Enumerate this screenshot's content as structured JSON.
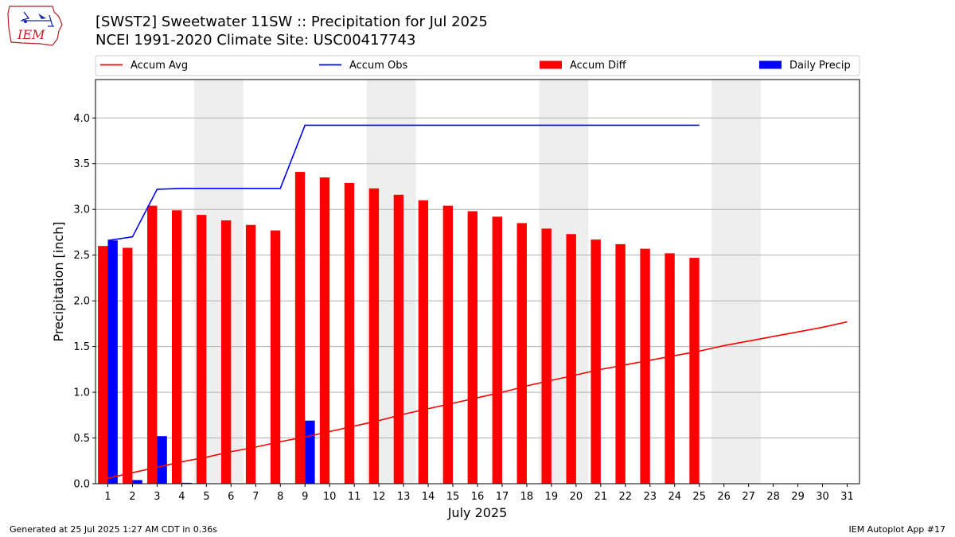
{
  "header": {
    "title_line1": "[SWST2] Sweetwater 11SW :: Precipitation for Jul 2025",
    "title_line2": "NCEI 1991-2020 Climate Site: USC00417743",
    "logo_text": "IEM"
  },
  "footer": {
    "generated": "Generated at 25 Jul 2025 1:27 AM CDT in 0.36s",
    "app": "IEM Autoplot App #17"
  },
  "colors": {
    "accum_avg": "#ff0000",
    "accum_obs": "#0000ff",
    "accum_diff": "#ff0000",
    "daily_precip": "#0000ff",
    "weekend_band": "#eeeeee",
    "grid": "#b0b0b0"
  },
  "chart_data": {
    "type": "bar",
    "xlabel": "July 2025",
    "ylabel": "Precipitation [inch]",
    "xlim": [
      0.5,
      31.5
    ],
    "ylim": [
      0,
      4.42
    ],
    "yticks": [
      0.0,
      0.5,
      1.0,
      1.5,
      2.0,
      2.5,
      3.0,
      3.5,
      4.0
    ],
    "ytick_labels": [
      "0.0",
      "0.5",
      "1.0",
      "1.5",
      "2.0",
      "2.5",
      "3.0",
      "3.5",
      "4.0"
    ],
    "days": [
      1,
      2,
      3,
      4,
      5,
      6,
      7,
      8,
      9,
      10,
      11,
      12,
      13,
      14,
      15,
      16,
      17,
      18,
      19,
      20,
      21,
      22,
      23,
      24,
      25,
      26,
      27,
      28,
      29,
      30,
      31
    ],
    "weekends": [
      [
        5,
        6
      ],
      [
        12,
        13
      ],
      [
        19,
        20
      ],
      [
        26,
        27
      ]
    ],
    "grid": "horizontal",
    "legend_position": "top",
    "series": [
      {
        "name": "Accum Avg",
        "kind": "line",
        "color": "#ff0000",
        "x": [
          1,
          2,
          3,
          4,
          5,
          6,
          7,
          8,
          9,
          10,
          11,
          12,
          13,
          14,
          15,
          16,
          17,
          18,
          19,
          20,
          21,
          22,
          23,
          24,
          25,
          26,
          27,
          28,
          29,
          30,
          31
        ],
        "values": [
          0.06,
          0.12,
          0.18,
          0.24,
          0.29,
          0.35,
          0.4,
          0.46,
          0.51,
          0.57,
          0.63,
          0.69,
          0.76,
          0.82,
          0.88,
          0.94,
          1.0,
          1.07,
          1.13,
          1.19,
          1.25,
          1.3,
          1.35,
          1.4,
          1.45,
          1.51,
          1.56,
          1.61,
          1.66,
          1.71,
          1.77
        ]
      },
      {
        "name": "Accum Obs",
        "kind": "line",
        "color": "#0000ff",
        "x": [
          1,
          2,
          3,
          4,
          5,
          6,
          7,
          8,
          9,
          10,
          11,
          12,
          13,
          14,
          15,
          16,
          17,
          18,
          19,
          20,
          21,
          22,
          23,
          24,
          25
        ],
        "values": [
          2.66,
          2.7,
          3.22,
          3.23,
          3.23,
          3.23,
          3.23,
          3.23,
          3.92,
          3.92,
          3.92,
          3.92,
          3.92,
          3.92,
          3.92,
          3.92,
          3.92,
          3.92,
          3.92,
          3.92,
          3.92,
          3.92,
          3.92,
          3.92,
          3.92
        ]
      },
      {
        "name": "Accum Diff",
        "kind": "bar",
        "color": "#ff0000",
        "x": [
          1,
          2,
          3,
          4,
          5,
          6,
          7,
          8,
          9,
          10,
          11,
          12,
          13,
          14,
          15,
          16,
          17,
          18,
          19,
          20,
          21,
          22,
          23,
          24,
          25
        ],
        "values": [
          2.6,
          2.58,
          3.04,
          2.99,
          2.94,
          2.88,
          2.83,
          2.77,
          3.41,
          3.35,
          3.29,
          3.23,
          3.16,
          3.1,
          3.04,
          2.98,
          2.92,
          2.85,
          2.79,
          2.73,
          2.67,
          2.62,
          2.57,
          2.52,
          2.47
        ]
      },
      {
        "name": "Daily Precip",
        "kind": "bar",
        "color": "#0000ff",
        "x": [
          1,
          2,
          3,
          4,
          5,
          6,
          7,
          8,
          9,
          10,
          11,
          12,
          13,
          14,
          15,
          16,
          17,
          18,
          19,
          20,
          21,
          22,
          23,
          24,
          25
        ],
        "values": [
          2.66,
          0.04,
          0.52,
          0.01,
          0,
          0,
          0,
          0,
          0.69,
          0,
          0,
          0,
          0,
          0,
          0,
          0,
          0,
          0,
          0,
          0,
          0,
          0,
          0,
          0,
          0
        ]
      }
    ]
  }
}
